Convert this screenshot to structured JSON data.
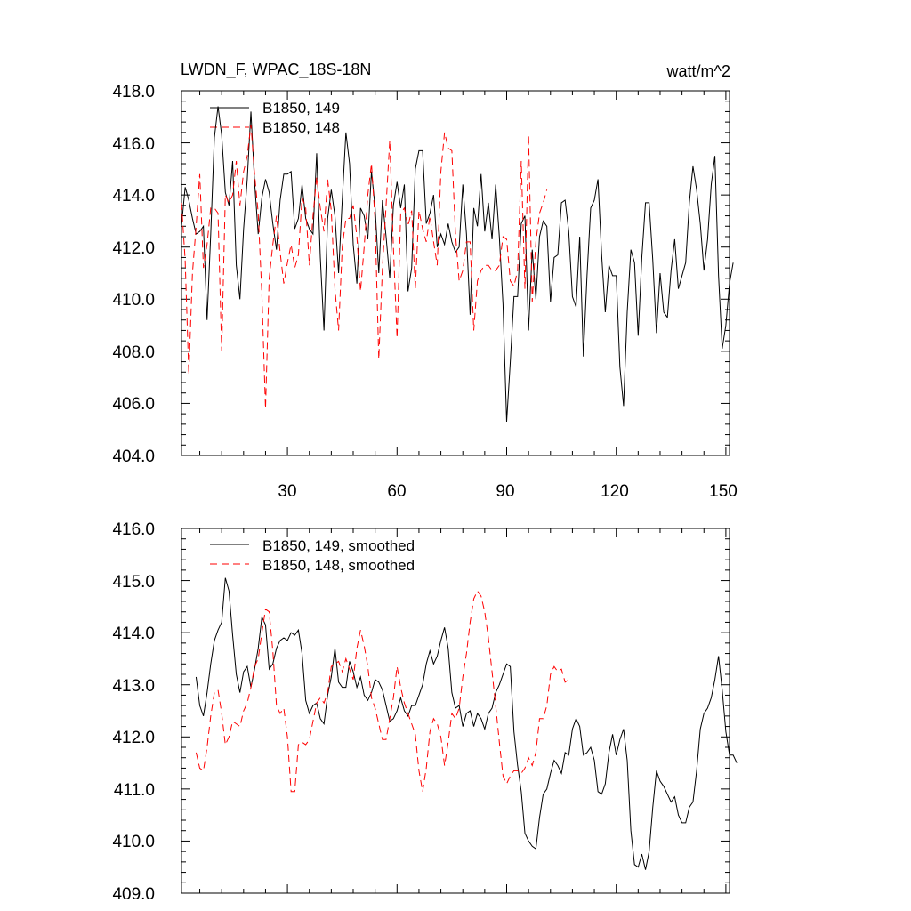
{
  "chart_data": [
    {
      "type": "line",
      "title": "LWDN_F, WPAC_18S-18N",
      "units": "watt/m^2",
      "xlim": [
        1,
        151
      ],
      "ylim": [
        404,
        418
      ],
      "xticks": [
        30,
        60,
        90,
        120,
        150
      ],
      "xtick_labels": [
        "30",
        "60",
        "90",
        "120",
        "150"
      ],
      "yticks": [
        404,
        406,
        408,
        410,
        412,
        414,
        416,
        418
      ],
      "ytick_labels": [
        "404.0",
        "406.0",
        "408.0",
        "410.0",
        "412.0",
        "414.0",
        "416.0",
        "418.0"
      ],
      "legend_position": "top-left",
      "series": [
        {
          "name": "B1850, 149",
          "color": "#000000",
          "dash": "solid",
          "x_start": 1,
          "values": [
            412.8,
            414.3,
            413.8,
            413.1,
            412.5,
            412.6,
            412.8,
            409.2,
            412.5,
            416.2,
            417.4,
            416.3,
            414.1,
            413.6,
            415.3,
            411.3,
            410.0,
            412.7,
            414.6,
            417.2,
            414.5,
            412.5,
            413.9,
            414.6,
            414.1,
            412.9,
            411.9,
            413.8,
            414.8,
            414.8,
            414.9,
            412.7,
            413.1,
            414.4,
            413.1,
            412.7,
            412.5,
            415.6,
            411.6,
            408.8,
            413.1,
            414.2,
            413.2,
            411.0,
            413.8,
            416.4,
            415.2,
            412.1,
            410.6,
            413.5,
            413.2,
            412.3,
            414.9,
            413.5,
            411.0,
            413.8,
            412.4,
            410.8,
            413.6,
            414.5,
            413.5,
            414.4,
            410.3,
            411.2,
            415.0,
            415.7,
            415.7,
            412.9,
            413.3,
            414.0,
            412.0,
            412.5,
            412.1,
            412.9,
            412.2,
            411.8,
            412.0,
            414.4,
            412.5,
            409.4,
            413.5,
            412.8,
            414.8,
            412.6,
            413.7,
            412.3,
            414.4,
            412.4,
            409.8,
            405.3,
            407.6,
            410.1,
            410.1,
            412.9,
            413.2,
            408.8,
            411.9,
            410.0,
            412.4,
            413.0,
            412.8,
            409.9,
            411.6,
            411.7,
            413.7,
            413.8,
            412.6,
            410.1,
            409.7,
            412.4,
            407.8,
            410.9,
            413.5,
            413.8,
            414.6,
            411.7,
            409.5,
            411.3,
            410.9,
            410.9,
            407.4,
            405.9,
            409.5,
            411.9,
            411.4,
            408.6,
            411.6,
            413.7,
            413.7,
            411.5,
            408.7,
            411.0,
            409.5,
            409.3,
            411.1,
            412.3,
            410.4,
            410.9,
            411.4,
            413.7,
            415.1,
            414.2,
            412.9,
            411.1,
            412.3,
            414.4,
            415.5,
            410.9,
            408.1,
            409.0,
            410.6,
            411.4
          ]
        },
        {
          "name": "B1850, 148",
          "color": "#ff0000",
          "dash": "dashed",
          "x_start": 1,
          "values": [
            413.7,
            411.5,
            407.1,
            411.0,
            412.8,
            414.8,
            411.2,
            412.1,
            413.5,
            413.5,
            413.3,
            408.0,
            414.0,
            413.7,
            414.0,
            415.3,
            413.6,
            414.9,
            415.5,
            416.7,
            414.8,
            413.3,
            410.2,
            405.8,
            410.8,
            412.1,
            413.2,
            411.8,
            410.6,
            411.4,
            412.1,
            411.2,
            411.7,
            413.9,
            413.5,
            411.3,
            413.2,
            414.7,
            413.5,
            412.6,
            414.6,
            413.4,
            410.4,
            408.8,
            412.0,
            413.1,
            413.1,
            413.6,
            412.4,
            410.3,
            412.0,
            414.0,
            415.2,
            413.0,
            407.7,
            411.2,
            413.6,
            416.1,
            412.0,
            408.5,
            413.3,
            413.5,
            412.8,
            413.4,
            410.4,
            413.4,
            412.7,
            412.2,
            413.2,
            412.2,
            411.3,
            414.9,
            416.4,
            415.8,
            415.7,
            412.5,
            410.7,
            411.1,
            412.2,
            412.2,
            408.8,
            410.7,
            411.1,
            411.3,
            411.3,
            411.1,
            411.1,
            411.3,
            412.4,
            412.3,
            410.7,
            410.5,
            411.1,
            415.3,
            410.4,
            416.3,
            409.9,
            412.2,
            413.3,
            413.7,
            414.2
          ]
        }
      ]
    },
    {
      "type": "line",
      "xlim": [
        1,
        151
      ],
      "ylim": [
        409,
        416
      ],
      "xticks": [
        30,
        60,
        90,
        120,
        150
      ],
      "yticks": [
        409,
        410,
        411,
        412,
        413,
        414,
        415,
        416
      ],
      "ytick_labels": [
        "409.0",
        "410.0",
        "411.0",
        "412.0",
        "413.0",
        "414.0",
        "415.0",
        "416.0"
      ],
      "legend_position": "top-left",
      "series": [
        {
          "name": "B1850, 149, smoothed",
          "color": "#000000",
          "dash": "solid",
          "x_start": 5,
          "values": [
            413.15,
            412.6,
            412.4,
            412.85,
            413.4,
            413.85,
            414.05,
            414.2,
            415.05,
            414.8,
            413.95,
            413.2,
            412.85,
            413.25,
            413.35,
            412.95,
            413.3,
            413.7,
            414.3,
            414.15,
            413.3,
            413.4,
            413.7,
            413.85,
            413.9,
            413.85,
            414.0,
            413.95,
            414.05,
            413.6,
            412.7,
            412.45,
            412.6,
            412.65,
            412.35,
            412.25,
            412.8,
            413.15,
            413.7,
            413.05,
            412.95,
            412.95,
            413.45,
            413.25,
            412.95,
            413.15,
            412.8,
            412.7,
            412.85,
            413.1,
            413.05,
            412.9,
            412.6,
            412.3,
            412.35,
            412.5,
            412.75,
            412.5,
            412.4,
            412.6,
            412.6,
            412.8,
            413.0,
            413.4,
            413.65,
            413.4,
            413.55,
            413.85,
            414.1,
            413.7,
            412.85,
            412.55,
            412.6,
            412.2,
            412.45,
            412.5,
            412.2,
            412.45,
            412.35,
            412.15,
            412.45,
            412.55,
            412.85,
            413.0,
            413.2,
            413.4,
            413.35,
            412.1,
            411.45,
            410.95,
            410.15,
            410.0,
            409.9,
            409.85,
            410.45,
            410.9,
            411.0,
            411.3,
            411.55,
            411.45,
            411.3,
            411.7,
            411.65,
            412.15,
            412.35,
            412.2,
            411.65,
            411.7,
            411.8,
            411.55,
            410.95,
            410.9,
            411.1,
            411.7,
            412.05,
            411.65,
            411.95,
            412.15,
            411.55,
            410.2,
            409.55,
            409.5,
            409.75,
            409.45,
            409.8,
            410.65,
            411.35,
            411.15,
            411.05,
            410.9,
            410.75,
            410.85,
            410.5,
            410.35,
            410.35,
            410.65,
            410.75,
            411.35,
            412.15,
            412.45,
            412.55,
            412.75,
            413.1,
            413.55,
            412.9,
            412.1,
            411.65,
            411.65,
            411.5
          ]
        },
        {
          "name": "B1850, 148, smoothed",
          "color": "#ff0000",
          "dash": "dashed",
          "x_start": 5,
          "values": [
            411.7,
            411.4,
            411.35,
            411.8,
            412.4,
            412.85,
            412.9,
            412.45,
            411.85,
            412.0,
            412.3,
            412.25,
            412.2,
            412.5,
            412.65,
            412.95,
            413.35,
            413.5,
            414.0,
            414.45,
            414.4,
            413.65,
            412.6,
            412.45,
            412.55,
            412.0,
            410.95,
            410.95,
            411.85,
            411.9,
            411.85,
            411.95,
            412.3,
            412.65,
            412.75,
            412.65,
            412.85,
            413.35,
            413.4,
            413.45,
            413.25,
            413.5,
            413.3,
            413.1,
            413.7,
            414.05,
            413.75,
            413.35,
            412.75,
            412.55,
            412.25,
            411.95,
            411.95,
            412.35,
            412.75,
            413.35,
            412.95,
            412.65,
            412.45,
            412.25,
            412.05,
            411.35,
            410.95,
            411.4,
            412.1,
            412.35,
            412.25,
            412.0,
            411.45,
            411.9,
            412.45,
            412.35,
            412.55,
            413.15,
            413.6,
            414.2,
            414.65,
            414.8,
            414.7,
            414.4,
            413.9,
            413.25,
            412.6,
            411.9,
            411.25,
            411.1,
            411.25,
            411.35,
            411.35,
            411.3,
            411.4,
            411.6,
            411.45,
            411.7,
            412.35,
            412.35,
            412.6,
            413.2,
            413.35,
            413.25,
            413.3,
            413.05,
            413.1
          ]
        }
      ]
    }
  ]
}
